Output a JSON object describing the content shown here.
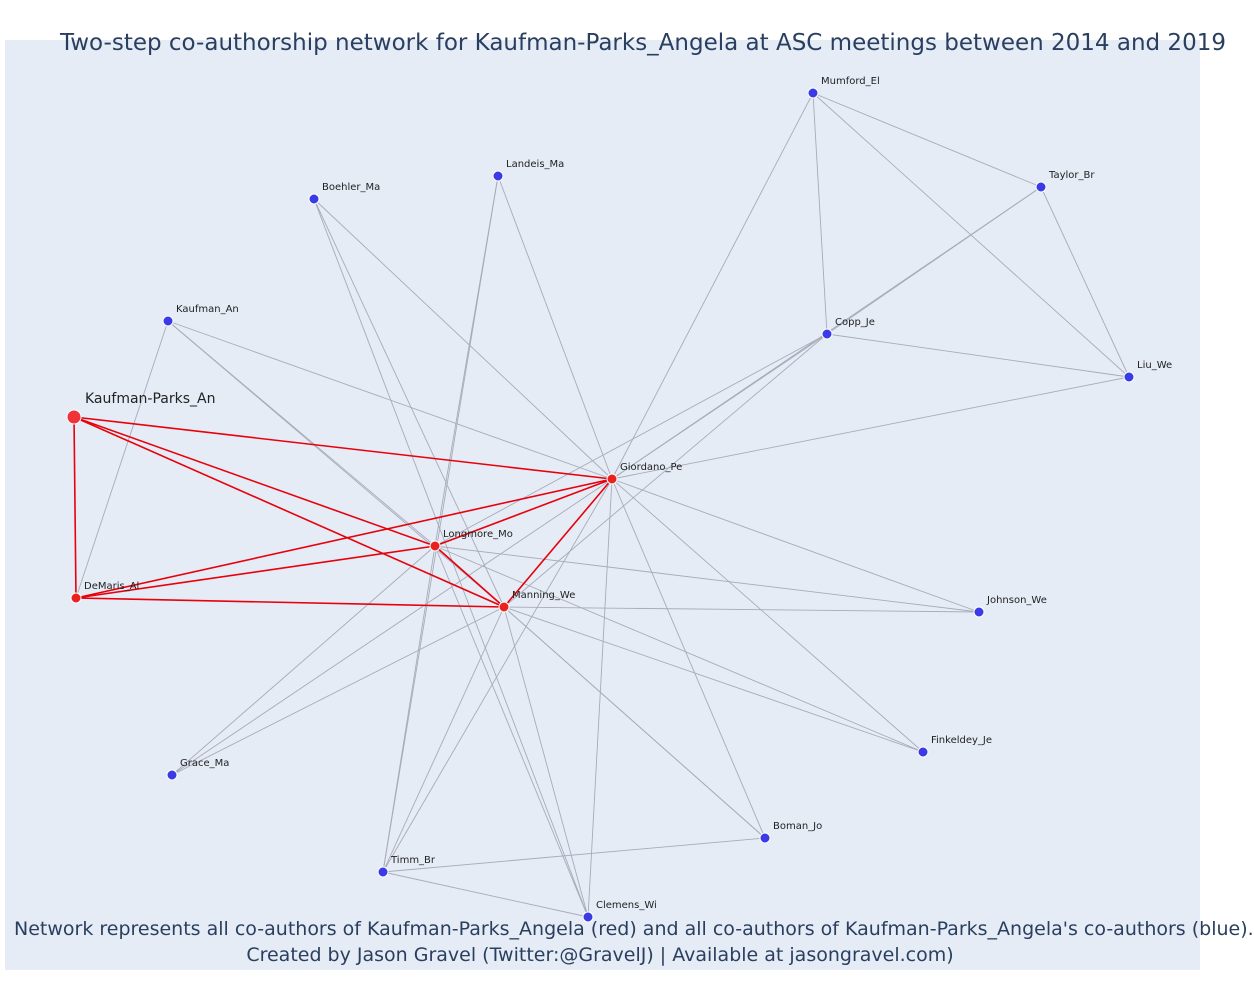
{
  "title": "Two-step co-authorship network for Kaufman-Parks_Angela at ASC meetings between 2014 and 2019",
  "caption": {
    "line1": "Network represents all co-authors of Kaufman-Parks_Angela (red) and all co-authors of Kaufman-Parks_Angela's co-authors (blue).",
    "line2": "Created by Jason Gravel (Twitter:@GravelJ) | Available at jasongravel.com)"
  },
  "colors": {
    "background": "#e5ecf6",
    "focal_node": "#f0333b",
    "coauthor_node": "#e8231f",
    "second_step_node": "#3a3ae6",
    "red_edge": "#e8000b",
    "gray_edge": "#a9aab9",
    "text": "#2a3f5f"
  },
  "nodes": [
    {
      "id": "Kaufman-Parks_An",
      "label": "Kaufman-Parks_An",
      "group": "focal"
    },
    {
      "id": "DeMaris_Al",
      "label": "DeMaris_Al",
      "group": "coauthor"
    },
    {
      "id": "Longmore_Mo",
      "label": "Longmore_Mo",
      "group": "coauthor"
    },
    {
      "id": "Manning_We",
      "label": "Manning_We",
      "group": "coauthor"
    },
    {
      "id": "Giordano_Pe",
      "label": "Giordano_Pe",
      "group": "coauthor"
    },
    {
      "id": "Mumford_El",
      "label": "Mumford_El",
      "group": "second"
    },
    {
      "id": "Taylor_Br",
      "label": "Taylor_Br",
      "group": "second"
    },
    {
      "id": "Landeis_Ma",
      "label": "Landeis_Ma",
      "group": "second"
    },
    {
      "id": "Boehler_Ma",
      "label": "Boehler_Ma",
      "group": "second"
    },
    {
      "id": "Kaufman_An",
      "label": "Kaufman_An",
      "group": "second"
    },
    {
      "id": "Copp_Je",
      "label": "Copp_Je",
      "group": "second"
    },
    {
      "id": "Liu_We",
      "label": "Liu_We",
      "group": "second"
    },
    {
      "id": "Johnson_We",
      "label": "Johnson_We",
      "group": "second"
    },
    {
      "id": "Finkeldey_Je",
      "label": "Finkeldey_Je",
      "group": "second"
    },
    {
      "id": "Boman_Jo",
      "label": "Boman_Jo",
      "group": "second"
    },
    {
      "id": "Grace_Ma",
      "label": "Grace_Ma",
      "group": "second"
    },
    {
      "id": "Timm_Br",
      "label": "Timm_Br",
      "group": "second"
    },
    {
      "id": "Clemens_Wi",
      "label": "Clemens_Wi",
      "group": "second"
    }
  ],
  "edges": [
    [
      "Kaufman-Parks_An",
      "DeMaris_Al",
      "red"
    ],
    [
      "Kaufman-Parks_An",
      "Longmore_Mo",
      "red"
    ],
    [
      "Kaufman-Parks_An",
      "Manning_We",
      "red"
    ],
    [
      "Kaufman-Parks_An",
      "Giordano_Pe",
      "red"
    ],
    [
      "DeMaris_Al",
      "Longmore_Mo",
      "red"
    ],
    [
      "DeMaris_Al",
      "Manning_We",
      "red"
    ],
    [
      "DeMaris_Al",
      "Giordano_Pe",
      "red"
    ],
    [
      "Longmore_Mo",
      "Manning_We",
      "red"
    ],
    [
      "Longmore_Mo",
      "Giordano_Pe",
      "red"
    ],
    [
      "Manning_We",
      "Giordano_Pe",
      "red"
    ],
    [
      "Mumford_El",
      "Taylor_Br",
      "gray"
    ],
    [
      "Mumford_El",
      "Liu_We",
      "gray"
    ],
    [
      "Mumford_El",
      "Copp_Je",
      "gray"
    ],
    [
      "Mumford_El",
      "Giordano_Pe",
      "gray"
    ],
    [
      "Taylor_Br",
      "Liu_We",
      "gray"
    ],
    [
      "Taylor_Br",
      "Copp_Je",
      "gray"
    ],
    [
      "Taylor_Br",
      "Giordano_Pe",
      "gray"
    ],
    [
      "Copp_Je",
      "Liu_We",
      "gray"
    ],
    [
      "Copp_Je",
      "Giordano_Pe",
      "gray"
    ],
    [
      "Copp_Je",
      "Longmore_Mo",
      "gray"
    ],
    [
      "Copp_Je",
      "Manning_We",
      "gray"
    ],
    [
      "Liu_We",
      "Giordano_Pe",
      "gray"
    ],
    [
      "Landeis_Ma",
      "Giordano_Pe",
      "gray"
    ],
    [
      "Landeis_Ma",
      "Longmore_Mo",
      "gray"
    ],
    [
      "Landeis_Ma",
      "Timm_Br",
      "gray"
    ],
    [
      "Boehler_Ma",
      "Giordano_Pe",
      "gray"
    ],
    [
      "Boehler_Ma",
      "Manning_We",
      "gray"
    ],
    [
      "Boehler_Ma",
      "Clemens_Wi",
      "gray"
    ],
    [
      "Kaufman_An",
      "DeMaris_Al",
      "gray"
    ],
    [
      "Kaufman_An",
      "Longmore_Mo",
      "gray"
    ],
    [
      "Kaufman_An",
      "Manning_We",
      "gray"
    ],
    [
      "Kaufman_An",
      "Giordano_Pe",
      "gray"
    ],
    [
      "Johnson_We",
      "Giordano_Pe",
      "gray"
    ],
    [
      "Johnson_We",
      "Longmore_Mo",
      "gray"
    ],
    [
      "Johnson_We",
      "Manning_We",
      "gray"
    ],
    [
      "Finkeldey_Je",
      "Giordano_Pe",
      "gray"
    ],
    [
      "Finkeldey_Je",
      "Longmore_Mo",
      "gray"
    ],
    [
      "Finkeldey_Je",
      "Manning_We",
      "gray"
    ],
    [
      "Boman_Jo",
      "Giordano_Pe",
      "gray"
    ],
    [
      "Boman_Jo",
      "Longmore_Mo",
      "gray"
    ],
    [
      "Boman_Jo",
      "Manning_We",
      "gray"
    ],
    [
      "Boman_Jo",
      "Timm_Br",
      "gray"
    ],
    [
      "Grace_Ma",
      "Giordano_Pe",
      "gray"
    ],
    [
      "Grace_Ma",
      "Longmore_Mo",
      "gray"
    ],
    [
      "Grace_Ma",
      "Manning_We",
      "gray"
    ],
    [
      "Timm_Br",
      "Giordano_Pe",
      "gray"
    ],
    [
      "Timm_Br",
      "Longmore_Mo",
      "gray"
    ],
    [
      "Timm_Br",
      "Manning_We",
      "gray"
    ],
    [
      "Timm_Br",
      "Clemens_Wi",
      "gray"
    ],
    [
      "Clemens_Wi",
      "Giordano_Pe",
      "gray"
    ],
    [
      "Clemens_Wi",
      "Longmore_Mo",
      "gray"
    ],
    [
      "Clemens_Wi",
      "Manning_We",
      "gray"
    ]
  ]
}
